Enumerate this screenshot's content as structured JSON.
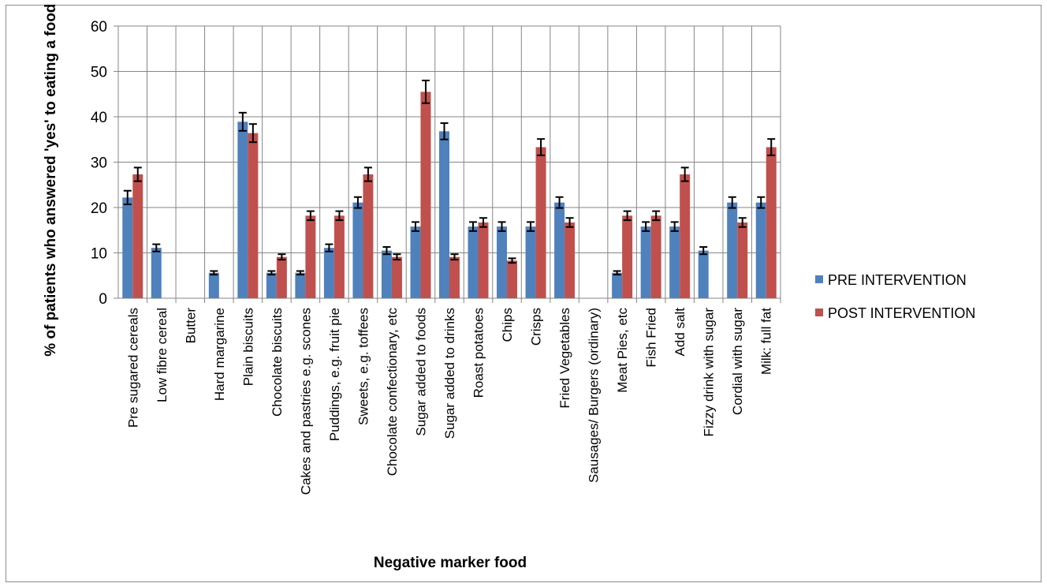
{
  "chart_data": {
    "type": "bar",
    "title": "",
    "xlabel": "Negative marker food",
    "ylabel": "% of patients who answered 'yes' to eating a food item",
    "ylim": [
      0,
      60
    ],
    "yticks": [
      "0",
      "10",
      "20",
      "30",
      "40",
      "50",
      "60"
    ],
    "grid": "on",
    "legend_position": "right",
    "error_bars": true,
    "categories": [
      "Pre sugared cereals",
      "Low fibre  cereal",
      "Butter",
      "Hard margarine",
      "Plain biscuits",
      "Chocolate biscuits",
      "Cakes and pastries e.g. scones",
      "Puddings, e.g. fruit pie",
      "Sweets, e.g. toffees",
      "Chocolate confectionary, etc",
      "Sugar added to foods",
      "Sugar added to drinks",
      "Roast potatoes",
      "Chips",
      "Crisps",
      "Fried Vegetables",
      "Sausages/ Burgers (ordinary)",
      "Meat Pies, etc",
      "Fish Fried",
      "Add salt",
      "Fizzy drink with sugar",
      "Cordial with sugar",
      "Milk: full fat"
    ],
    "series": [
      {
        "name": "PRE INTERVENTION",
        "color": "#4f81bd",
        "values": [
          22.2,
          11.1,
          0,
          5.6,
          38.9,
          5.6,
          5.6,
          11.1,
          21.1,
          10.5,
          15.8,
          36.8,
          15.8,
          15.8,
          15.8,
          21.1,
          0,
          5.6,
          15.8,
          15.8,
          10.5,
          21.1,
          21.1
        ],
        "errors": [
          1.5,
          0.8,
          0,
          0.4,
          2.0,
          0.4,
          0.4,
          0.8,
          1.2,
          0.8,
          1.0,
          1.8,
          1.0,
          1.0,
          1.0,
          1.2,
          0,
          0.4,
          1.0,
          1.0,
          0.8,
          1.2,
          1.2
        ]
      },
      {
        "name": "POST INTERVENTION",
        "color": "#c0504d",
        "values": [
          27.3,
          0,
          0,
          0,
          36.4,
          9.1,
          18.2,
          18.2,
          27.3,
          9.1,
          45.5,
          9.1,
          16.7,
          8.3,
          33.3,
          16.7,
          0,
          18.2,
          18.2,
          27.3,
          0,
          16.7,
          33.3
        ],
        "errors": [
          1.5,
          0,
          0,
          0,
          2.0,
          0.6,
          1.0,
          1.0,
          1.5,
          0.6,
          2.5,
          0.6,
          1.0,
          0.5,
          1.8,
          1.0,
          0,
          1.0,
          1.0,
          1.5,
          0,
          1.0,
          1.8
        ]
      }
    ]
  }
}
